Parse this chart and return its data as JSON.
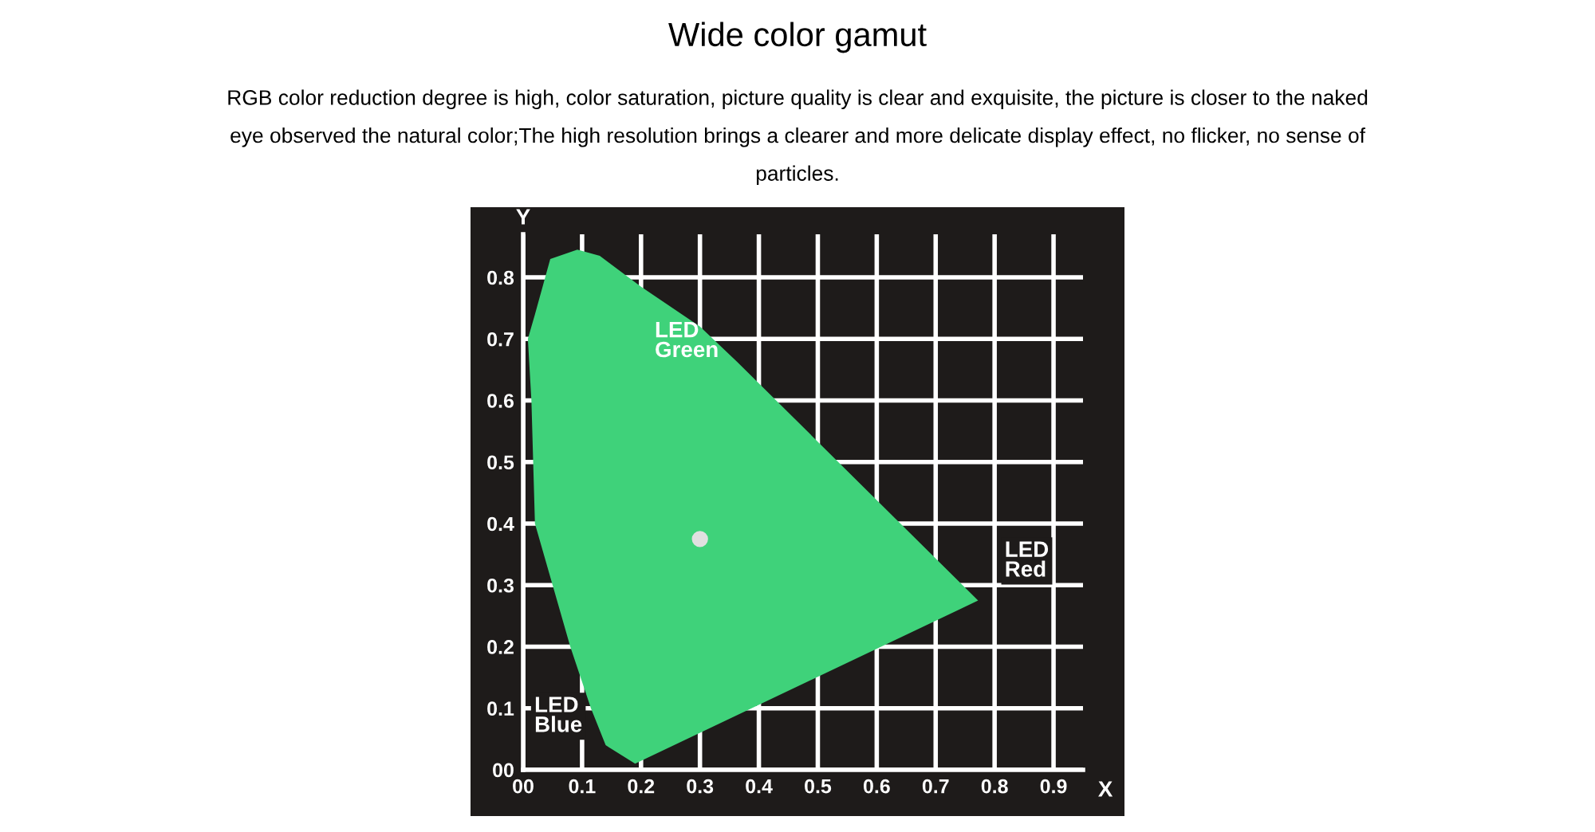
{
  "chart_data": {
    "type": "area",
    "title": "Wide color gamut",
    "subtitle": "RGB color reduction degree is high, color saturation, picture quality is clear and exquisite, the picture is closer to the naked eye observed the natural color;The high resolution brings a clearer and more delicate display effect, no flicker, no sense of particles.",
    "xlabel": "X",
    "ylabel": "Y",
    "series": [
      {
        "color": "#3fd27a",
        "x": [
          0.19,
          0.14,
          0.115,
          0.08,
          0.05,
          0.02,
          0.014,
          0.008,
          0.02,
          0.046,
          0.092,
          0.13,
          0.2,
          0.3,
          0.363,
          0.772,
          0.19
        ],
        "values": [
          0.01,
          0.04,
          0.1,
          0.2,
          0.3,
          0.4,
          0.6,
          0.7,
          0.74,
          0.83,
          0.845,
          0.835,
          0.785,
          0.72,
          0.663,
          0.275,
          0.01
        ]
      },
      {
        "type": "scatter",
        "color": "#e0e0e0",
        "x": [
          0.3
        ],
        "values": [
          0.375
        ]
      }
    ],
    "annotations": [
      "LED\nGreen",
      "LED\nRed",
      "LED\nBlue"
    ],
    "xlim": [
      0,
      0.95
    ],
    "ylim": [
      0,
      0.87
    ],
    "xticks": [
      {
        "value": 0,
        "label": "00"
      },
      0.1,
      0.2,
      0.3,
      0.4,
      0.5,
      0.6,
      0.7,
      0.8,
      0.9
    ],
    "yticks": [
      {
        "value": 0,
        "label": "00"
      },
      0.1,
      0.2,
      0.3,
      0.4,
      0.5,
      0.6,
      0.7,
      0.8
    ],
    "grid": true
  }
}
